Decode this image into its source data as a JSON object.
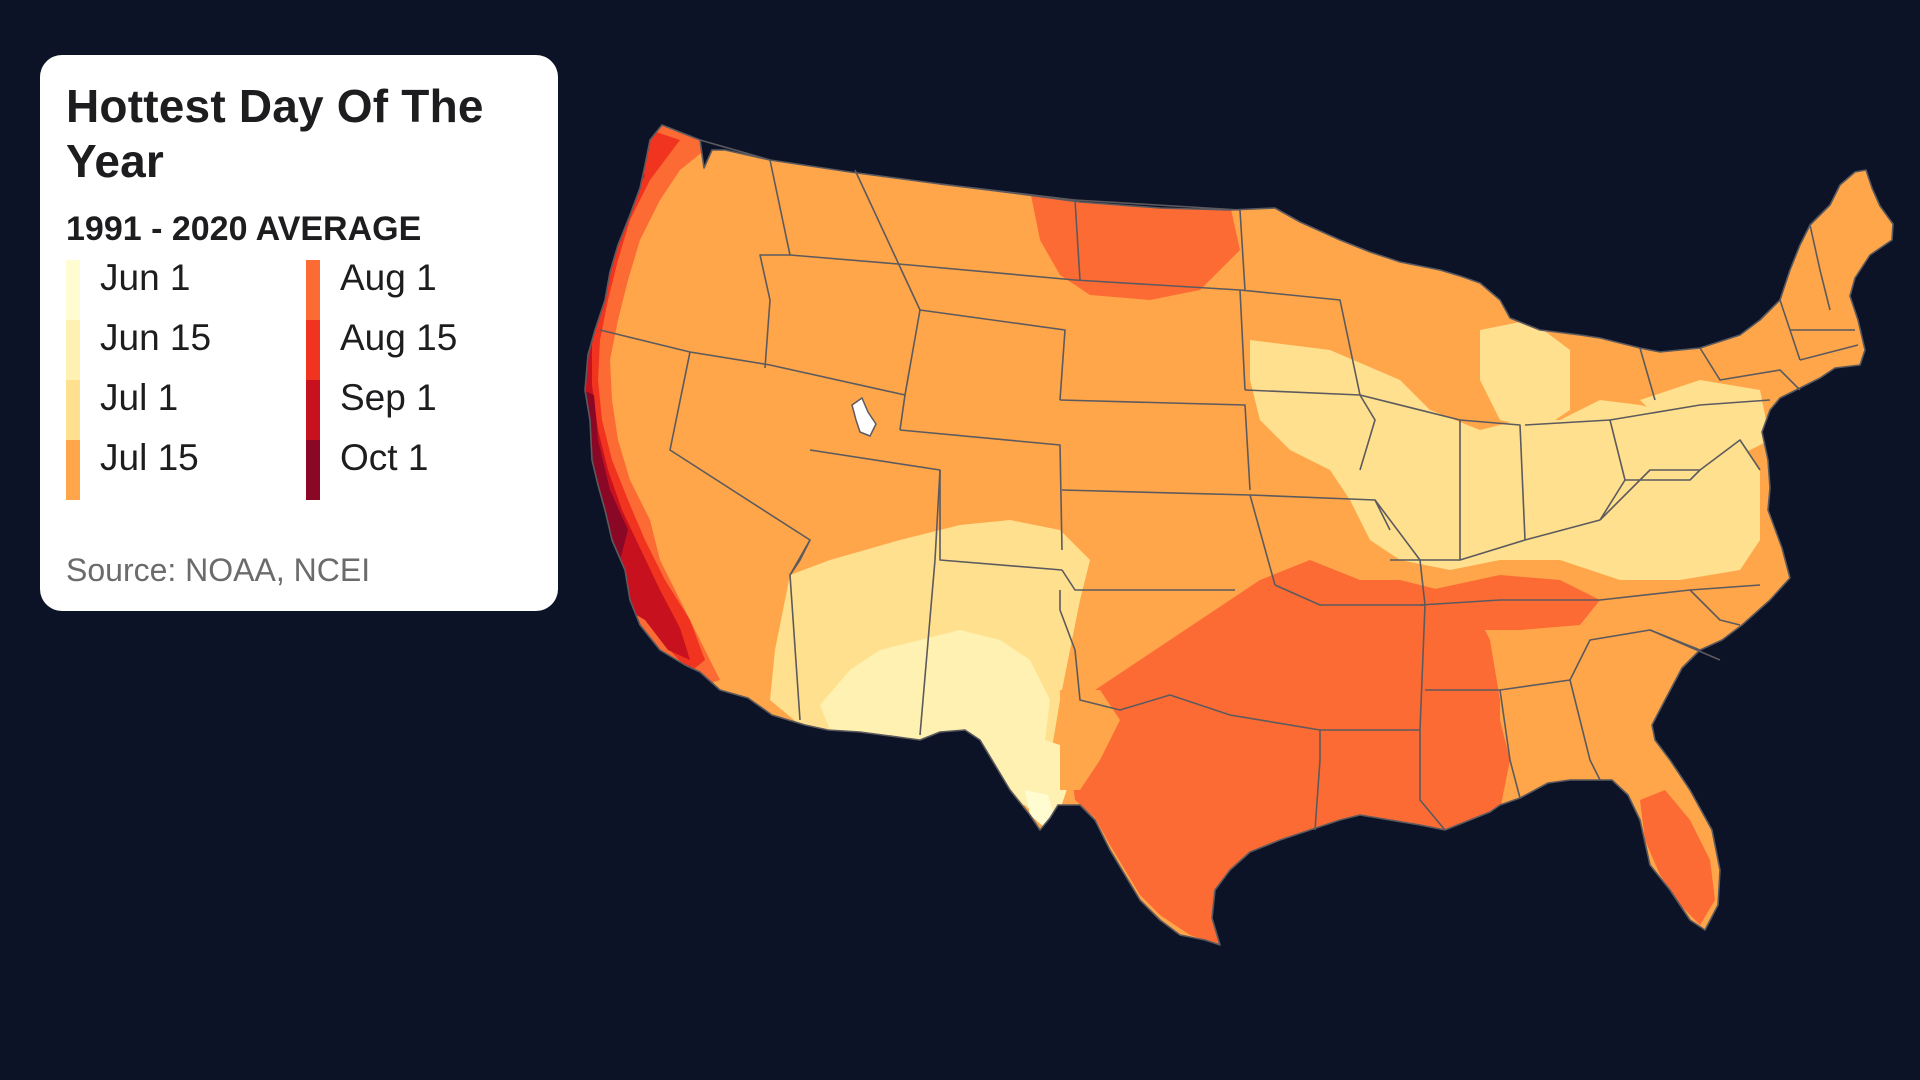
{
  "title": "Hottest Day Of The Year",
  "subtitle": "1991 - 2020 AVERAGE",
  "source": "Source: NOAA, NCEI",
  "legend": {
    "left": [
      {
        "label": "Jun 1",
        "color": "#fffcd2"
      },
      {
        "label": "Jun 15",
        "color": "#fff1b1"
      },
      {
        "label": "Jul 1",
        "color": "#fee08f"
      },
      {
        "label": "Jul 15",
        "color": "#fea649"
      }
    ],
    "right": [
      {
        "label": "Aug 1",
        "color": "#fc6b34"
      },
      {
        "label": "Aug 15",
        "color": "#f0341f"
      },
      {
        "label": "Sep 1",
        "color": "#c7111f"
      },
      {
        "label": "Oct 1",
        "color": "#8a0726"
      }
    ]
  },
  "colors": {
    "background": "#0d1326",
    "borders": "#5c5a5e"
  }
}
